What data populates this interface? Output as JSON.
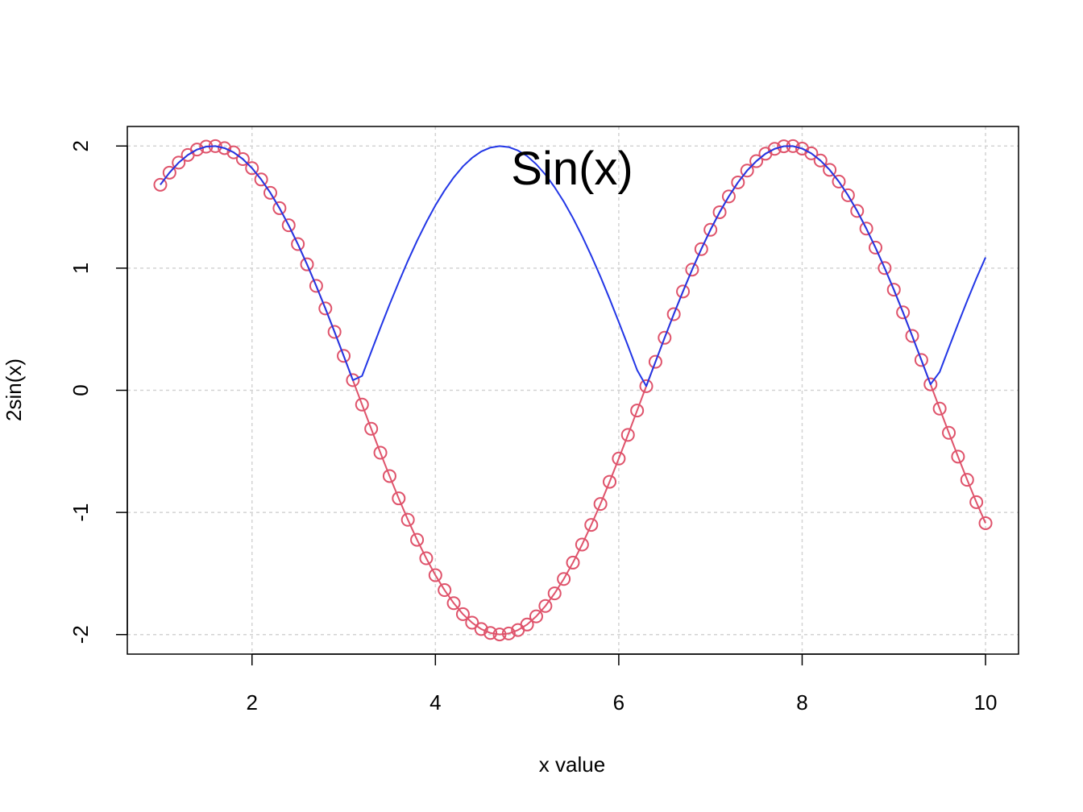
{
  "chart_data": {
    "type": "line",
    "title": "Sin(x)",
    "xlabel": "x value",
    "ylabel": "2sin(x)",
    "xlim": [
      0.64,
      10.36
    ],
    "ylim": [
      -2.16,
      2.16
    ],
    "x_ticks": [
      2,
      4,
      6,
      8,
      10
    ],
    "y_ticks": [
      -2,
      -1,
      0,
      1,
      2
    ],
    "x_tick_labels": [
      "2",
      "4",
      "6",
      "8",
      "10"
    ],
    "y_tick_labels": [
      "-2",
      "-1",
      "0",
      "1",
      "2"
    ],
    "grid": true,
    "x": [
      1.0,
      1.1,
      1.2,
      1.3,
      1.4,
      1.5,
      1.6,
      1.7,
      1.8,
      1.9,
      2.0,
      2.1,
      2.2,
      2.3,
      2.4,
      2.5,
      2.6,
      2.7,
      2.8,
      2.9,
      3.0,
      3.1,
      3.2,
      3.3,
      3.4,
      3.5,
      3.6,
      3.7,
      3.8,
      3.9,
      4.0,
      4.1,
      4.2,
      4.3,
      4.4,
      4.5,
      4.6,
      4.7,
      4.8,
      4.9,
      5.0,
      5.1,
      5.2,
      5.3,
      5.4,
      5.5,
      5.6,
      5.7,
      5.8,
      5.9,
      6.0,
      6.1,
      6.2,
      6.3,
      6.4,
      6.5,
      6.6,
      6.7,
      6.8,
      6.9,
      7.0,
      7.1,
      7.2,
      7.3,
      7.4,
      7.5,
      7.6,
      7.7,
      7.8,
      7.9,
      8.0,
      8.1,
      8.2,
      8.3,
      8.4,
      8.5,
      8.6,
      8.7,
      8.8,
      8.9,
      9.0,
      9.1,
      9.2,
      9.3,
      9.4,
      9.5,
      9.6,
      9.7,
      9.8,
      9.9,
      10.0
    ],
    "series": [
      {
        "style": "line+circles",
        "color": "#DF536B",
        "values": [
          1.683,
          1.782,
          1.864,
          1.927,
          1.971,
          1.995,
          1.999,
          1.983,
          1.948,
          1.893,
          1.819,
          1.726,
          1.617,
          1.491,
          1.351,
          1.197,
          1.031,
          0.855,
          0.67,
          0.478,
          0.282,
          0.083,
          -0.117,
          -0.315,
          -0.511,
          -0.702,
          -0.885,
          -1.06,
          -1.224,
          -1.375,
          -1.514,
          -1.636,
          -1.743,
          -1.833,
          -1.903,
          -1.955,
          -1.987,
          -1.999,
          -1.991,
          -1.963,
          -1.918,
          -1.851,
          -1.766,
          -1.663,
          -1.545,
          -1.411,
          -1.263,
          -1.102,
          -0.931,
          -0.749,
          -0.559,
          -0.365,
          -0.166,
          0.034,
          0.233,
          0.43,
          0.623,
          0.809,
          0.988,
          1.156,
          1.314,
          1.458,
          1.587,
          1.702,
          1.799,
          1.876,
          1.937,
          1.977,
          1.998,
          1.999,
          1.979,
          1.94,
          1.881,
          1.805,
          1.709,
          1.597,
          1.468,
          1.324,
          1.168,
          1.001,
          0.824,
          0.638,
          0.445,
          0.248,
          0.049,
          -0.15,
          -0.348,
          -0.543,
          -0.733,
          -0.916,
          -1.088
        ]
      },
      {
        "style": "line",
        "color": "#2236E6",
        "values": [
          1.683,
          1.782,
          1.864,
          1.927,
          1.971,
          1.995,
          1.999,
          1.983,
          1.948,
          1.893,
          1.819,
          1.726,
          1.617,
          1.491,
          1.351,
          1.197,
          1.031,
          0.855,
          0.67,
          0.478,
          0.282,
          0.083,
          0.117,
          0.315,
          0.511,
          0.702,
          0.885,
          1.06,
          1.224,
          1.375,
          1.514,
          1.636,
          1.743,
          1.833,
          1.903,
          1.955,
          1.987,
          1.999,
          1.991,
          1.963,
          1.918,
          1.851,
          1.766,
          1.663,
          1.545,
          1.411,
          1.263,
          1.102,
          0.931,
          0.749,
          0.559,
          0.365,
          0.166,
          0.034,
          0.233,
          0.43,
          0.623,
          0.809,
          0.988,
          1.156,
          1.314,
          1.458,
          1.587,
          1.702,
          1.799,
          1.876,
          1.937,
          1.977,
          1.998,
          1.999,
          1.979,
          1.94,
          1.881,
          1.805,
          1.709,
          1.597,
          1.468,
          1.324,
          1.168,
          1.001,
          0.824,
          0.638,
          0.445,
          0.248,
          0.049,
          0.15,
          0.348,
          0.543,
          0.733,
          0.916,
          1.088
        ]
      }
    ]
  }
}
